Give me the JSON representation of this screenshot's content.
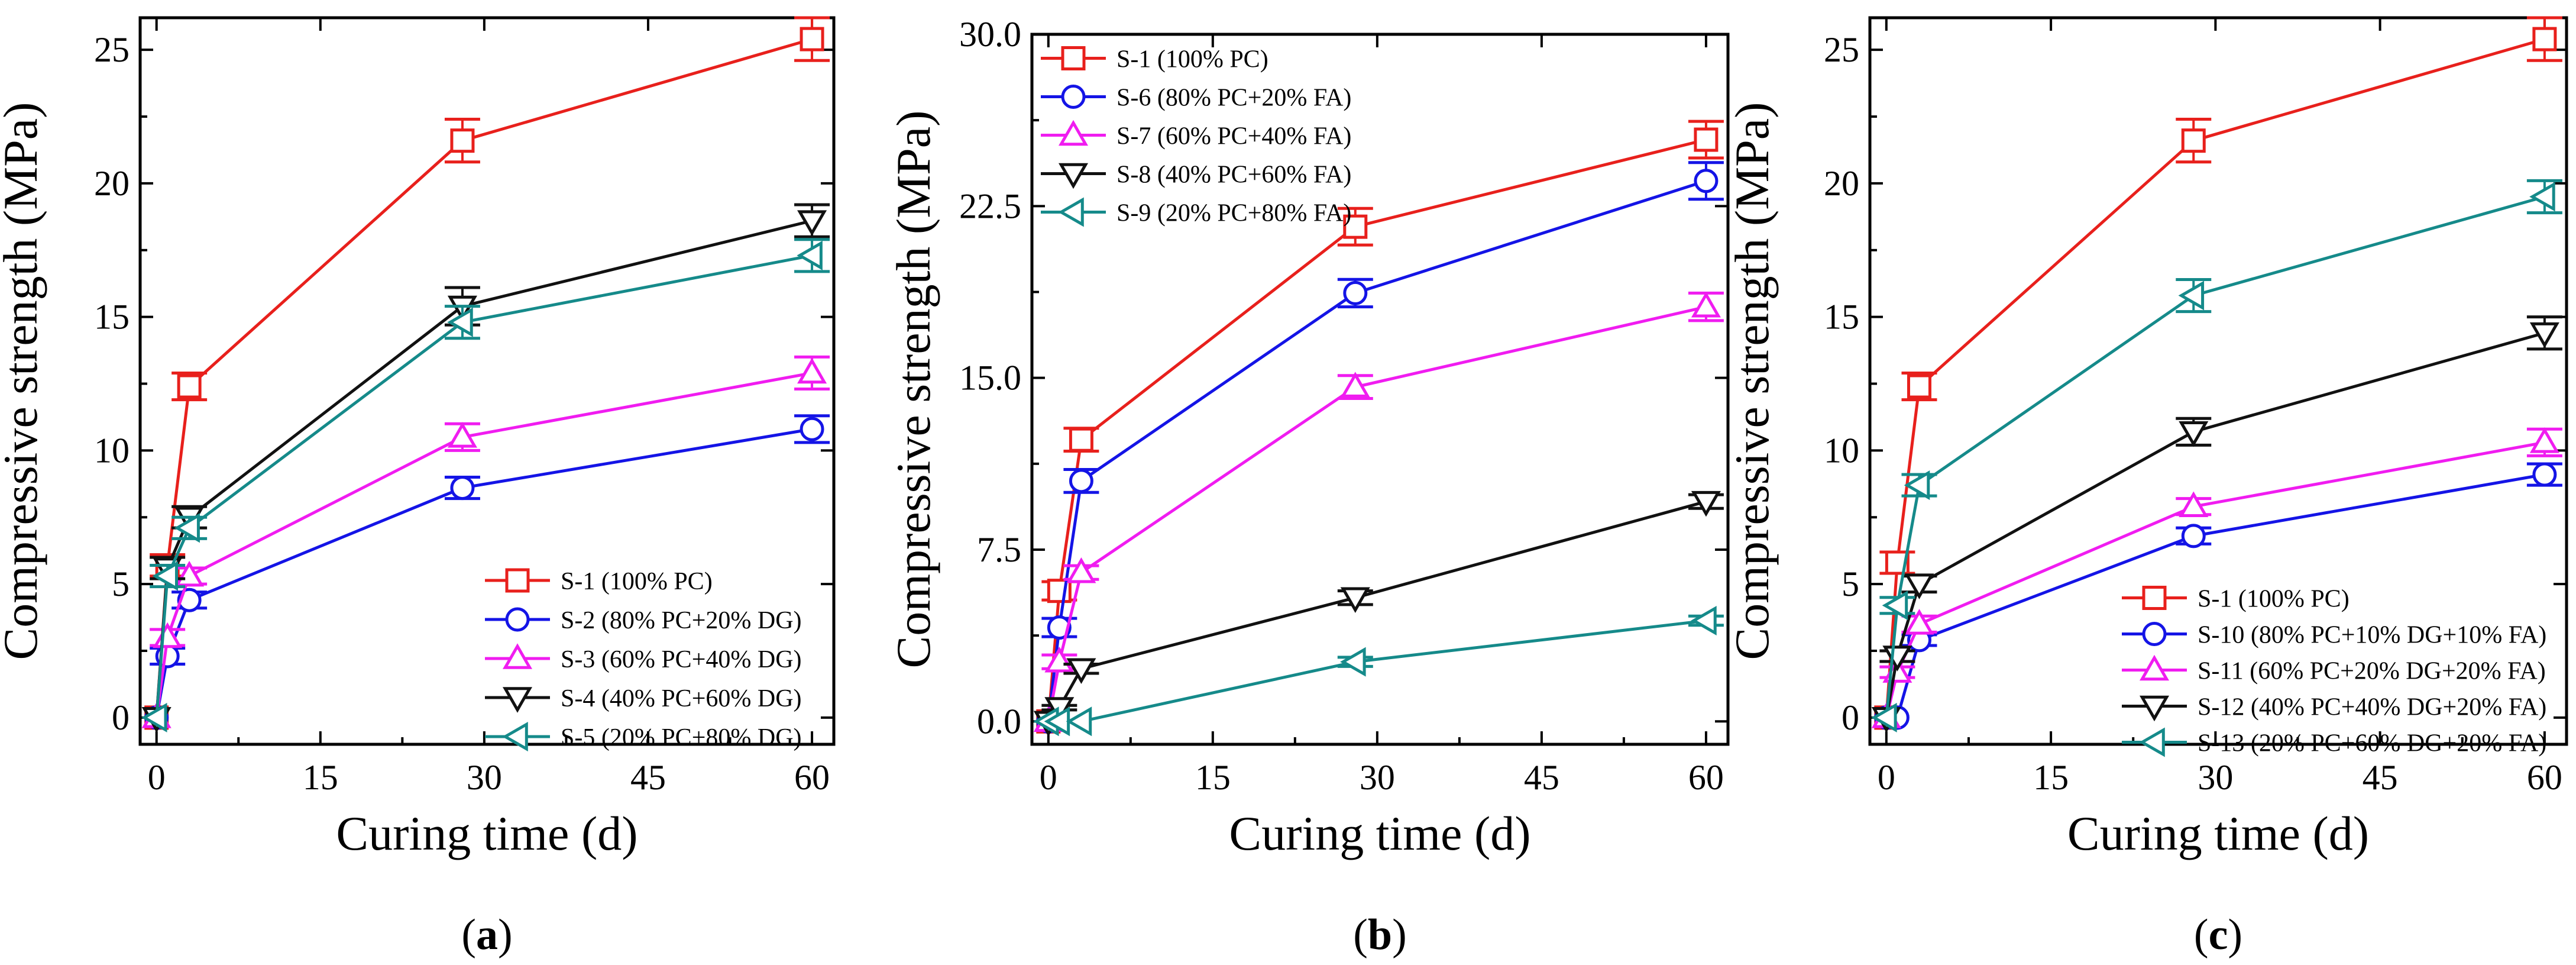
{
  "chart_data": [
    {
      "type": "line",
      "panel_label": "(a)",
      "xlabel": "Curing time (d)",
      "ylabel": "Compressive strength (MPa)",
      "xlim": [
        -1.5,
        62
      ],
      "ylim": [
        -1,
        26.2
      ],
      "xticks": [
        0,
        15,
        30,
        45,
        60
      ],
      "yticks": [
        0,
        5,
        10,
        15,
        20,
        25
      ],
      "ytick_labels": [
        "0",
        "5",
        "10",
        "15",
        "20",
        "25"
      ],
      "grid": false,
      "legend_position": "bottom-right",
      "x": [
        0,
        1,
        3,
        28,
        60
      ],
      "series": [
        {
          "name": "S-1 (100% PC)",
          "color": "#e8201c",
          "marker": "square",
          "values": [
            0,
            5.7,
            12.4,
            21.6,
            25.4
          ],
          "errors": [
            0,
            0.4,
            0.5,
            0.8,
            0.8
          ]
        },
        {
          "name": "S-2 (80% PC+20% DG)",
          "color": "#1414e6",
          "marker": "circle",
          "values": [
            0,
            2.3,
            4.4,
            8.6,
            10.8
          ],
          "errors": [
            0,
            0.3,
            0.3,
            0.4,
            0.5
          ]
        },
        {
          "name": "S-3 (60% PC+40% DG)",
          "color": "#f01cf0",
          "marker": "triangle-up",
          "values": [
            0,
            3.0,
            5.3,
            10.5,
            12.9
          ],
          "errors": [
            0,
            0.3,
            0.3,
            0.5,
            0.6
          ]
        },
        {
          "name": "S-4 (40% PC+60% DG)",
          "color": "#111111",
          "marker": "triangle-down",
          "values": [
            0,
            5.6,
            7.5,
            15.4,
            18.6
          ],
          "errors": [
            0,
            0.4,
            0.4,
            0.7,
            0.6
          ]
        },
        {
          "name": "S-5 (20% PC+80% DG)",
          "color": "#158a8a",
          "marker": "triangle-left",
          "values": [
            0,
            5.3,
            7.1,
            14.8,
            17.3
          ],
          "errors": [
            0,
            0.4,
            0.4,
            0.6,
            0.6
          ]
        }
      ]
    },
    {
      "type": "line",
      "panel_label": "(b)",
      "xlabel": "Curing time (d)",
      "ylabel": "Compressive strength (MPa)",
      "xlim": [
        -1.5,
        62
      ],
      "ylim": [
        -1,
        30
      ],
      "xticks": [
        0,
        15,
        30,
        45,
        60
      ],
      "yticks": [
        0,
        7.5,
        15,
        22.5,
        30
      ],
      "ytick_labels": [
        "0.0",
        "7.5",
        "15.0",
        "22.5",
        "30.0"
      ],
      "grid": false,
      "legend_position": "top-left",
      "x": [
        0,
        1,
        3,
        28,
        60
      ],
      "series": [
        {
          "name": "S-1 (100% PC)",
          "color": "#e8201c",
          "marker": "square",
          "values": [
            0,
            5.7,
            12.3,
            21.6,
            25.4
          ],
          "errors": [
            0,
            0.4,
            0.5,
            0.8,
            0.8
          ]
        },
        {
          "name": "S-6 (80% PC+20% FA)",
          "color": "#1414e6",
          "marker": "circle",
          "values": [
            0,
            4.1,
            10.5,
            18.7,
            23.6
          ],
          "errors": [
            0,
            0.4,
            0.5,
            0.6,
            0.8
          ]
        },
        {
          "name": "S-7 (60% PC+40% FA)",
          "color": "#f01cf0",
          "marker": "triangle-up",
          "values": [
            0,
            2.6,
            6.5,
            14.6,
            18.1
          ],
          "errors": [
            0,
            0.3,
            0.3,
            0.5,
            0.6
          ]
        },
        {
          "name": "S-8 (40% PC+60% FA)",
          "color": "#111111",
          "marker": "triangle-down",
          "values": [
            0,
            0.6,
            2.3,
            5.4,
            9.6
          ],
          "errors": [
            0,
            0.1,
            0.2,
            0.3,
            0.3
          ]
        },
        {
          "name": "S-9 (20% PC+80% FA)",
          "color": "#158a8a",
          "marker": "triangle-left",
          "values": [
            0,
            0,
            0,
            2.6,
            4.4
          ],
          "errors": [
            0,
            0,
            0,
            0.2,
            0.2
          ]
        }
      ]
    },
    {
      "type": "line",
      "panel_label": "(c)",
      "xlabel": "Curing time (d)",
      "ylabel": "Compressive strength (MPa)",
      "xlim": [
        -1.5,
        62
      ],
      "ylim": [
        -1,
        26.2
      ],
      "xticks": [
        0,
        15,
        30,
        45,
        60
      ],
      "yticks": [
        0,
        5,
        10,
        15,
        20,
        25
      ],
      "ytick_labels": [
        "0",
        "5",
        "10",
        "15",
        "20",
        "25"
      ],
      "grid": false,
      "legend_position": "bottom-right",
      "x": [
        0,
        1,
        3,
        28,
        60
      ],
      "series": [
        {
          "name": "S-1 (100% PC)",
          "color": "#e8201c",
          "marker": "square",
          "values": [
            0,
            5.8,
            12.4,
            21.6,
            25.4
          ],
          "errors": [
            0,
            0.4,
            0.5,
            0.8,
            0.8
          ]
        },
        {
          "name": "S-10 (80% PC+10% DG+10% FA)",
          "color": "#1414e6",
          "marker": "circle",
          "values": [
            0,
            0,
            2.9,
            6.8,
            9.1
          ],
          "errors": [
            0,
            0,
            0.2,
            0.3,
            0.4
          ]
        },
        {
          "name": "S-11 (60% PC+20% DG+20% FA)",
          "color": "#f01cf0",
          "marker": "triangle-up",
          "values": [
            0,
            1.7,
            3.5,
            7.9,
            10.3
          ],
          "errors": [
            0,
            0.2,
            0.3,
            0.3,
            0.5
          ]
        },
        {
          "name": "S-12 (40% PC+40% DG+20% FA)",
          "color": "#111111",
          "marker": "triangle-down",
          "values": [
            0,
            2.3,
            5.0,
            10.7,
            14.4
          ],
          "errors": [
            0,
            0.2,
            0.3,
            0.5,
            0.6
          ]
        },
        {
          "name": "S-13 (20% PC+60% DG+20% FA)",
          "color": "#158a8a",
          "marker": "triangle-left",
          "values": [
            0,
            4.2,
            8.7,
            15.8,
            19.5
          ],
          "errors": [
            0,
            0.3,
            0.4,
            0.6,
            0.6
          ]
        }
      ]
    }
  ]
}
